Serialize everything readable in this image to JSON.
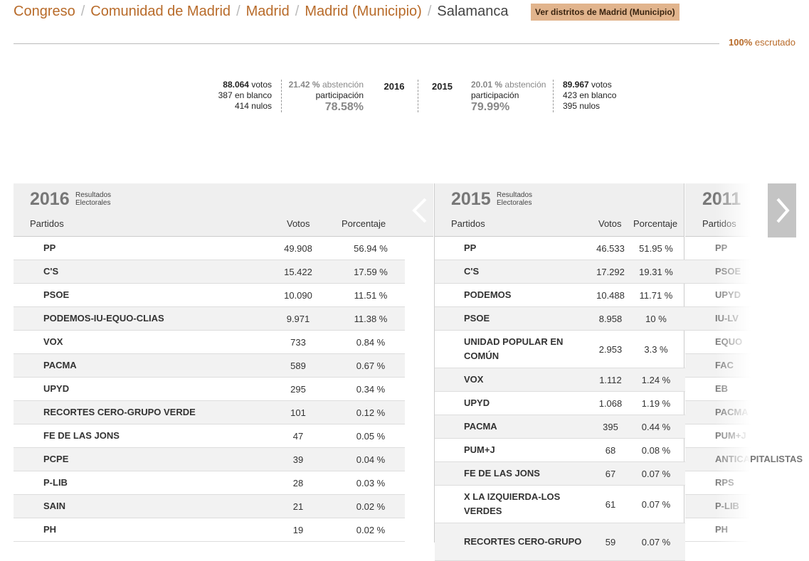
{
  "breadcrumb": {
    "items": [
      "Congreso",
      "Comunidad de Madrid",
      "Madrid",
      "Madrid (Municipio)"
    ],
    "separator": "/",
    "current": "Salamanca"
  },
  "districts_button": "Ver distritos de Madrid (Municipio)",
  "scrutiny": {
    "pct": "100%",
    "label": "escrutado"
  },
  "summary_2016": {
    "year": "2016",
    "votes": "88.064",
    "votes_label": "votos",
    "blank": "387 en blanco",
    "null": "414 nulos",
    "abstention": "21.42 %",
    "abstention_label": "abstención",
    "participation_label": "participación",
    "participation": "78.58%"
  },
  "summary_2015": {
    "year": "2015",
    "votes": "89.967",
    "votes_label": "votos",
    "blank": "423 en blanco",
    "null": "395 nulos",
    "abstention": "20.01 %",
    "abstention_label": "abstención",
    "participation_label": "participación",
    "participation": "79.99%"
  },
  "headers": {
    "party": "Partidos",
    "votes": "Votos",
    "pct": "Porcentaje",
    "results": "Resultados",
    "electoral": "Electorales"
  },
  "table_2016": {
    "year": "2016",
    "rows": [
      {
        "party": "PP",
        "votes": "49.908",
        "pct": "56.94 %"
      },
      {
        "party": "C'S",
        "votes": "15.422",
        "pct": "17.59 %"
      },
      {
        "party": "PSOE",
        "votes": "10.090",
        "pct": "11.51 %"
      },
      {
        "party": "PODEMOS-IU-EQUO-CLIAS",
        "votes": "9.971",
        "pct": "11.38 %"
      },
      {
        "party": "VOX",
        "votes": "733",
        "pct": "0.84 %"
      },
      {
        "party": "PACMA",
        "votes": "589",
        "pct": "0.67 %"
      },
      {
        "party": "UPYD",
        "votes": "295",
        "pct": "0.34 %"
      },
      {
        "party": "RECORTES CERO-GRUPO VERDE",
        "votes": "101",
        "pct": "0.12 %"
      },
      {
        "party": "FE DE LAS JONS",
        "votes": "47",
        "pct": "0.05 %"
      },
      {
        "party": "PCPE",
        "votes": "39",
        "pct": "0.04 %"
      },
      {
        "party": "P-LIB",
        "votes": "28",
        "pct": "0.03 %"
      },
      {
        "party": "SAIN",
        "votes": "21",
        "pct": "0.02 %"
      },
      {
        "party": "PH",
        "votes": "19",
        "pct": "0.02 %"
      }
    ]
  },
  "table_2015": {
    "year": "2015",
    "rows": [
      {
        "party": "PP",
        "votes": "46.533",
        "pct": "51.95 %"
      },
      {
        "party": "C'S",
        "votes": "17.292",
        "pct": "19.31 %"
      },
      {
        "party": "PODEMOS",
        "votes": "10.488",
        "pct": "11.71 %"
      },
      {
        "party": "PSOE",
        "votes": "8.958",
        "pct": "10 %"
      },
      {
        "party": "UNIDAD POPULAR EN COMÚN",
        "votes": "2.953",
        "pct": "3.3 %"
      },
      {
        "party": "VOX",
        "votes": "1.112",
        "pct": "1.24 %"
      },
      {
        "party": "UPYD",
        "votes": "1.068",
        "pct": "1.19 %"
      },
      {
        "party": "PACMA",
        "votes": "395",
        "pct": "0.44 %"
      },
      {
        "party": "PUM+J",
        "votes": "68",
        "pct": "0.08 %"
      },
      {
        "party": "FE DE LAS JONS",
        "votes": "67",
        "pct": "0.07 %"
      },
      {
        "party": "X LA IZQUIERDA-LOS VERDES",
        "votes": "61",
        "pct": "0.07 %"
      },
      {
        "party": "RECORTES CERO-GRUPO",
        "votes": "59",
        "pct": "0.07 %"
      }
    ]
  },
  "table_2011": {
    "year": "2011",
    "rows": [
      "PP",
      "PSOE",
      "UPYD",
      "IU-LV",
      "EQUO",
      "FAC",
      "EB",
      "PACMA",
      "PUM+J",
      "ANTICAPITALISTAS",
      "RPS",
      "P-LIB",
      "PH"
    ]
  },
  "colors": {
    "accent": "#b86b2a",
    "button_bg": "#e1b48d",
    "header_bg": "#efefef",
    "row_alt": "#f2f2f2"
  }
}
